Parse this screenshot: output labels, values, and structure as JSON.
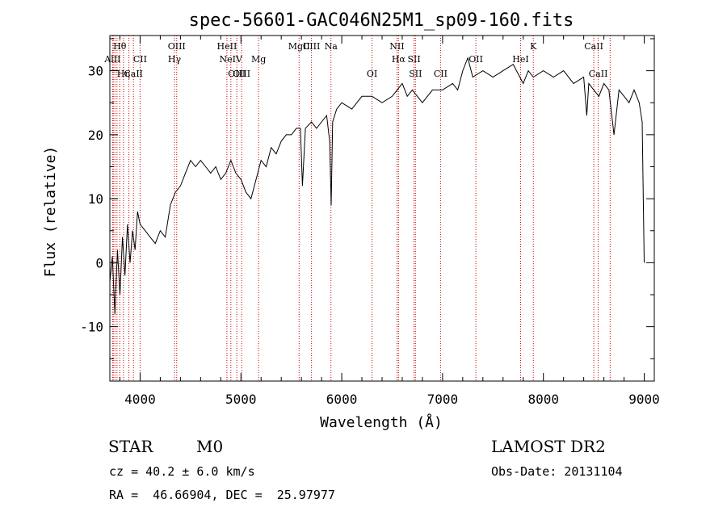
{
  "chart_data": {
    "type": "line",
    "title": "spec-56601-GAC046N25M1_sp09-160.fits",
    "xlabel": "Wavelength (Å)",
    "ylabel": "Flux (relative)",
    "xlim": [
      3700,
      9100
    ],
    "ylim": [
      -18.5,
      35.5
    ],
    "xticks": [
      4000,
      5000,
      6000,
      7000,
      8000,
      9000
    ],
    "yticks": [
      -10,
      0,
      10,
      20,
      30
    ],
    "grid": false,
    "legend": "none",
    "colors": {
      "line": "#000000",
      "marker_lines": "#cc0000",
      "axes": "#000000"
    },
    "series": [
      {
        "x": [
          3700,
          3725,
          3750,
          3775,
          3800,
          3825,
          3850,
          3875,
          3900,
          3925,
          3950,
          3975,
          4000,
          4050,
          4100,
          4150,
          4200,
          4250,
          4300,
          4350,
          4400,
          4450,
          4500,
          4550,
          4600,
          4650,
          4700,
          4750,
          4800,
          4850,
          4900,
          4950,
          5000,
          5050,
          5100,
          5150,
          5200,
          5250,
          5300,
          5350,
          5400,
          5450,
          5500,
          5550,
          5590,
          5610,
          5640,
          5700,
          5750,
          5800,
          5850,
          5880,
          5895,
          5910,
          5950,
          6000,
          6100,
          6200,
          6300,
          6400,
          6500,
          6550,
          6600,
          6650,
          6700,
          6800,
          6900,
          7000,
          7100,
          7150,
          7200,
          7250,
          7300,
          7400,
          7500,
          7600,
          7700,
          7800,
          7850,
          7900,
          8000,
          8100,
          8200,
          8300,
          8400,
          8430,
          8450,
          8500,
          8550,
          8600,
          8650,
          8700,
          8750,
          8800,
          8850,
          8900,
          8950,
          8980,
          9000
        ],
        "y": [
          -3,
          1,
          -8,
          2,
          -5,
          4,
          -2,
          6,
          0,
          5,
          2,
          8,
          6,
          5,
          4,
          3,
          5,
          4,
          9,
          11,
          12,
          14,
          16,
          15,
          16,
          15,
          14,
          15,
          13,
          14,
          16,
          14,
          13,
          11,
          10,
          13,
          16,
          15,
          18,
          17,
          19,
          20,
          20,
          21,
          21,
          12,
          21,
          22,
          21,
          22,
          23,
          19,
          9,
          22,
          24,
          25,
          24,
          26,
          26,
          25,
          26,
          27,
          28,
          26,
          27,
          25,
          27,
          27,
          28,
          27,
          30,
          32,
          29,
          30,
          29,
          30,
          31,
          28,
          30,
          29,
          30,
          29,
          30,
          28,
          29,
          23,
          28,
          27,
          26,
          28,
          27,
          20,
          27,
          26,
          25,
          27,
          25,
          22,
          0
        ]
      }
    ],
    "line_markers": [
      {
        "x": 3727,
        "label": "AlII",
        "row": 2
      },
      {
        "x": 3734,
        "label": "",
        "row": 0
      },
      {
        "x": 3750,
        "label": "",
        "row": 0
      },
      {
        "x": 3771,
        "label": "",
        "row": 0
      },
      {
        "x": 3798,
        "label": "Hθ",
        "row": 1
      },
      {
        "x": 3835,
        "label": "Hη",
        "row": 3
      },
      {
        "x": 3889,
        "label": "",
        "row": 0
      },
      {
        "x": 3934,
        "label": "CaII",
        "row": 3
      },
      {
        "x": 4000,
        "label": "CII",
        "row": 2
      },
      {
        "x": 4341,
        "label": "Hγ",
        "row": 2
      },
      {
        "x": 4363,
        "label": "OIII",
        "row": 1
      },
      {
        "x": 4861,
        "label": "HeII",
        "row": 1
      },
      {
        "x": 4900,
        "label": "NeIV",
        "row": 2
      },
      {
        "x": 4959,
        "label": "OIII",
        "row": 3
      },
      {
        "x": 5007,
        "label": "OIII",
        "row": 3
      },
      {
        "x": 5175,
        "label": "Mg",
        "row": 2
      },
      {
        "x": 5577,
        "label": "MgII",
        "row": 1
      },
      {
        "x": 5700,
        "label": "CIII",
        "row": 1
      },
      {
        "x": 5893,
        "label": "Na",
        "row": 1
      },
      {
        "x": 6300,
        "label": "OI",
        "row": 3
      },
      {
        "x": 6548,
        "label": "NII",
        "row": 1
      },
      {
        "x": 6563,
        "label": "Hα",
        "row": 2
      },
      {
        "x": 6717,
        "label": "SII",
        "row": 2
      },
      {
        "x": 6731,
        "label": "SII",
        "row": 3
      },
      {
        "x": 6980,
        "label": "CII",
        "row": 3
      },
      {
        "x": 7330,
        "label": "OII",
        "row": 2
      },
      {
        "x": 7774,
        "label": "HeI",
        "row": 2
      },
      {
        "x": 7900,
        "label": "K",
        "row": 1
      },
      {
        "x": 8500,
        "label": "CaII",
        "row": 1
      },
      {
        "x": 8544,
        "label": "CaII",
        "row": 3
      },
      {
        "x": 8662,
        "label": "",
        "row": 0
      }
    ]
  },
  "info": {
    "class": "STAR",
    "subclass": "M0",
    "survey": "LAMOST DR2",
    "cz": "cz = 40.2 ± 6.0 km/s",
    "obsdate": "Obs-Date: 20131104",
    "radec": "RA =  46.66904, DEC =  25.97977"
  }
}
